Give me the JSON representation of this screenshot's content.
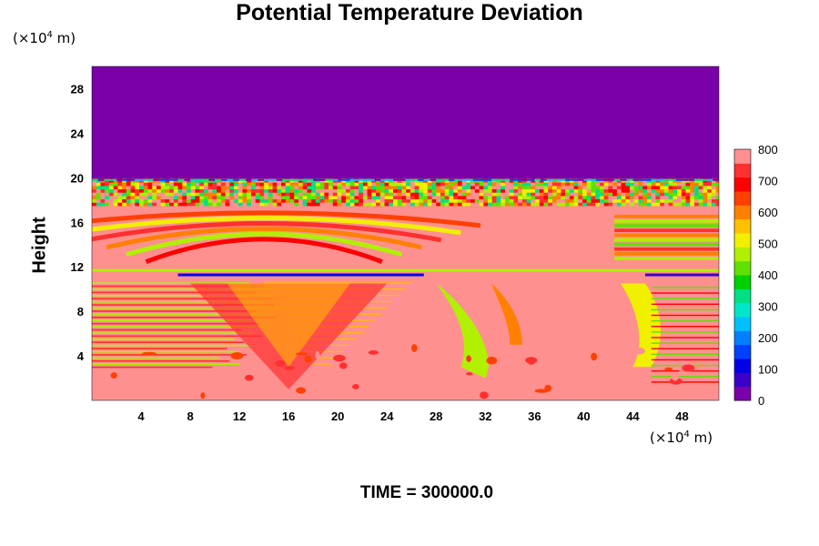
{
  "chart_data": {
    "type": "heatmap",
    "title": "Potential Temperature Deviation",
    "ylabel": "Height",
    "xlabel": "",
    "x_unit": {
      "prefix": "(×10",
      "exp": "4",
      "suffix": " m)"
    },
    "y_unit": {
      "prefix": "(×10",
      "exp": "4",
      "suffix": " m)"
    },
    "x_ticks": [
      4,
      8,
      12,
      16,
      20,
      24,
      28,
      32,
      36,
      40,
      44,
      48
    ],
    "y_ticks": [
      4,
      8,
      12,
      16,
      20,
      24,
      28
    ],
    "xlim": [
      0,
      51
    ],
    "ylim": [
      0,
      30
    ],
    "colorbar": {
      "ticks": [
        0,
        100,
        200,
        300,
        400,
        500,
        600,
        700,
        800
      ],
      "range": [
        0,
        800
      ],
      "colors": [
        "#7a00aa",
        "#3a00c8",
        "#0000e6",
        "#0040ff",
        "#0080ff",
        "#00c0ff",
        "#00e6c8",
        "#00e080",
        "#00d000",
        "#60e000",
        "#b0f000",
        "#f0f000",
        "#ffc000",
        "#ff8000",
        "#ff4000",
        "#ff0000",
        "#ff3030",
        "#ff9090"
      ]
    },
    "regions": [
      {
        "kind": "uniform_top",
        "y_from": 19.8,
        "y_to": 30,
        "value": 0
      },
      {
        "kind": "noisy_band",
        "y_from": 17.5,
        "y_to": 19.8,
        "value_range": [
          300,
          800
        ]
      },
      {
        "kind": "arc_bands",
        "x_center": 14,
        "y_center": 12,
        "value_range": [
          450,
          780
        ]
      },
      {
        "kind": "lower_field",
        "y_from": 0,
        "y_to": 11,
        "value": 800
      }
    ]
  },
  "footer": "TIME = 300000.0"
}
